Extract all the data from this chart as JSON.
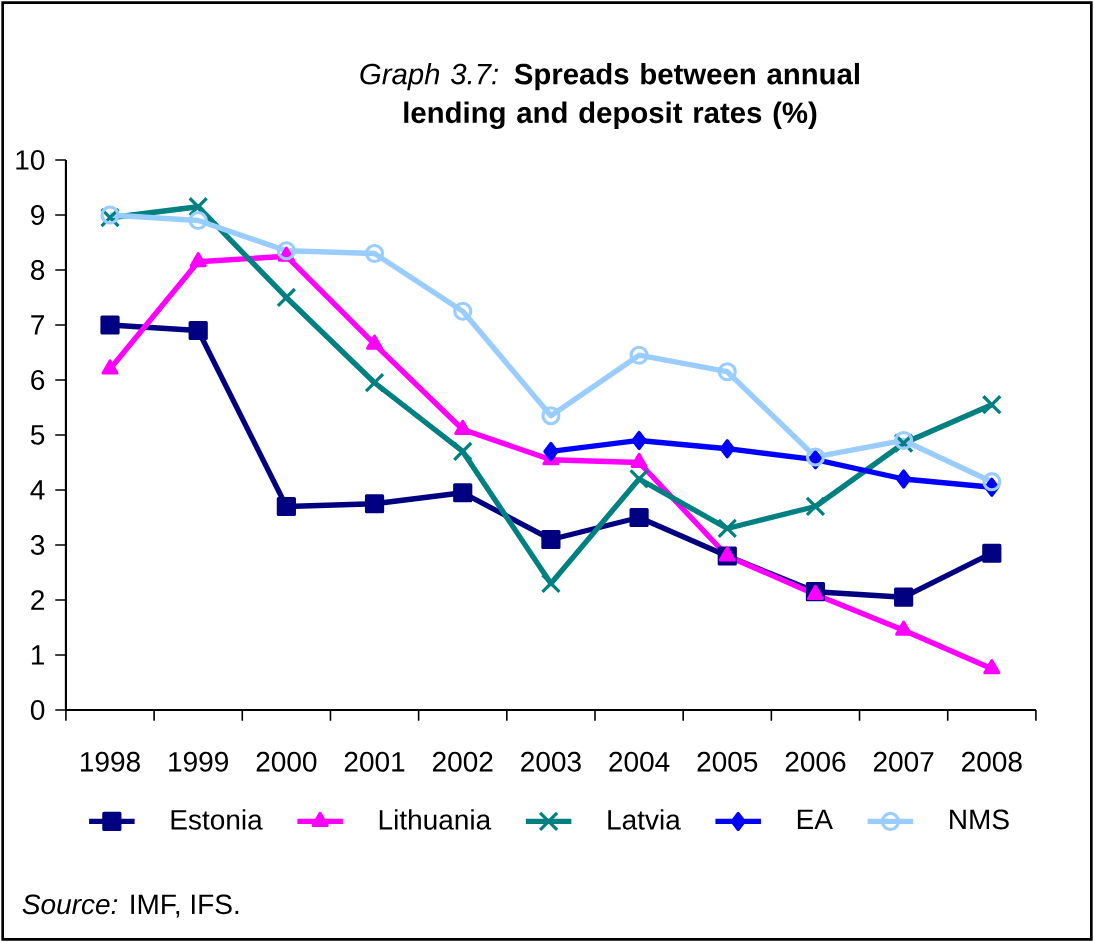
{
  "chart_data": {
    "type": "line",
    "title": "*Graph 3.7:* **Spreads between annual lending and deposit rates (%)**",
    "categories": [
      "1998",
      "1999",
      "2000",
      "2001",
      "2002",
      "2003",
      "2004",
      "2005",
      "2006",
      "2007",
      "2008"
    ],
    "series": [
      {
        "name": "Estonia",
        "color": "#000080",
        "marker": "square",
        "values": [
          7.0,
          6.9,
          3.7,
          3.75,
          3.95,
          3.1,
          3.5,
          2.8,
          2.15,
          2.05,
          2.85
        ]
      },
      {
        "name": "Lithuania",
        "color": "#ff00ff",
        "marker": "triangle",
        "values": [
          6.2,
          8.15,
          8.25,
          6.65,
          5.1,
          4.55,
          4.5,
          2.8,
          2.1,
          1.45,
          0.75
        ]
      },
      {
        "name": "Latvia",
        "color": "#008080",
        "marker": "cross",
        "values": [
          8.95,
          9.15,
          7.5,
          5.95,
          4.7,
          2.3,
          4.2,
          3.3,
          3.7,
          4.85,
          5.55
        ]
      },
      {
        "name": "EA",
        "color": "#0000ff",
        "marker": "diamond",
        "values": [
          null,
          null,
          null,
          null,
          null,
          4.7,
          4.9,
          4.75,
          4.55,
          4.2,
          4.05
        ]
      },
      {
        "name": "NMS",
        "color": "#99ccff",
        "marker": "circle",
        "values": [
          9.0,
          8.9,
          8.35,
          8.3,
          7.25,
          5.35,
          6.45,
          6.15,
          4.6,
          4.9,
          4.15
        ]
      }
    ],
    "ylim": [
      0,
      10
    ],
    "yticks": [
      0,
      1,
      2,
      3,
      4,
      5,
      6,
      7,
      8,
      9,
      10
    ],
    "grid": false,
    "legend": "bottom",
    "line_style": "solid",
    "annotations": [
      "*Source:* IMF, IFS."
    ]
  }
}
